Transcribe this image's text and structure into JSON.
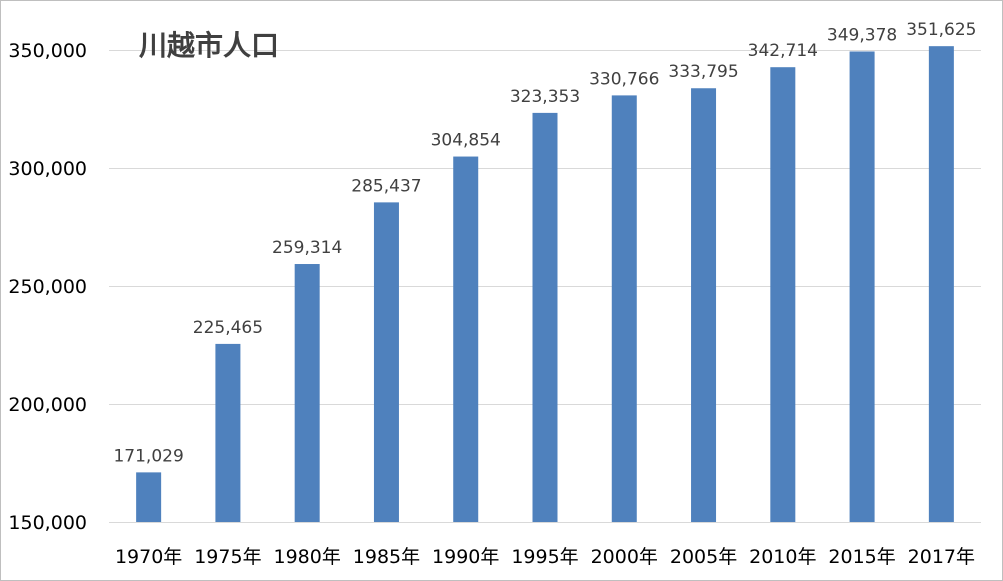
{
  "chart_data": {
    "type": "bar",
    "title": "川越市人口",
    "xlabel": "",
    "ylabel": "",
    "categories": [
      "1970年",
      "1975年",
      "1980年",
      "1985年",
      "1990年",
      "1995年",
      "2000年",
      "2005年",
      "2010年",
      "2015年",
      "2017年"
    ],
    "values": [
      171029,
      225465,
      259314,
      285437,
      304854,
      323353,
      330766,
      333795,
      342714,
      349378,
      351625
    ],
    "data_labels": [
      "171,029",
      "225,465",
      "259,314",
      "285,437",
      "304,854",
      "323,353",
      "330,766",
      "333,795",
      "342,714",
      "349,378",
      "351,625"
    ],
    "ylim": [
      150000,
      350000
    ],
    "yticks": [
      150000,
      200000,
      250000,
      300000,
      350000
    ],
    "ytick_labels": [
      "150,000",
      "200,000",
      "250,000",
      "300,000",
      "350,000"
    ],
    "grid": true,
    "legend": "none",
    "bar_color": "#4f81bd"
  }
}
